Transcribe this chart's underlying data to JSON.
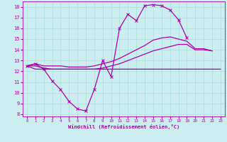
{
  "xlabel": "Windchill (Refroidissement éolien,°C)",
  "background_color": "#cceef0",
  "grid_color": "#aadddd",
  "line_color": "#aa00aa",
  "xlim": [
    -0.5,
    23.5
  ],
  "ylim": [
    7.8,
    18.5
  ],
  "yticks": [
    8,
    9,
    10,
    11,
    12,
    13,
    14,
    15,
    16,
    17,
    18
  ],
  "xticks": [
    0,
    1,
    2,
    3,
    4,
    5,
    6,
    7,
    8,
    9,
    10,
    11,
    12,
    13,
    14,
    15,
    16,
    17,
    18,
    19,
    20,
    21,
    22,
    23
  ],
  "curve_zigzag": {
    "x": [
      0,
      1,
      2,
      3,
      4,
      5,
      6,
      7,
      8,
      9,
      10,
      11,
      12,
      13,
      14,
      15,
      16,
      17,
      18,
      19
    ],
    "y": [
      12.5,
      12.7,
      12.2,
      11.1,
      10.3,
      9.2,
      8.5,
      8.3,
      10.3,
      13.0,
      11.5,
      16.0,
      17.3,
      16.7,
      18.1,
      18.2,
      18.1,
      17.7,
      16.8,
      15.1
    ]
  },
  "curve_upper": {
    "x": [
      0,
      1,
      2,
      3,
      4,
      5,
      6,
      7,
      8,
      9,
      10,
      11,
      12,
      13,
      14,
      15,
      16,
      17,
      18,
      19,
      20,
      21,
      22
    ],
    "y": [
      12.5,
      12.7,
      12.5,
      12.5,
      12.5,
      12.4,
      12.4,
      12.4,
      12.5,
      12.7,
      12.9,
      13.2,
      13.6,
      14.0,
      14.4,
      14.9,
      15.1,
      15.2,
      15.0,
      14.8,
      14.1,
      14.1,
      13.9
    ]
  },
  "curve_mid": {
    "x": [
      0,
      1,
      2,
      3,
      4,
      5,
      6,
      7,
      8,
      9,
      10,
      11,
      12,
      13,
      14,
      15,
      16,
      17,
      18,
      19,
      20,
      21,
      22
    ],
    "y": [
      12.5,
      12.5,
      12.3,
      12.2,
      12.2,
      12.2,
      12.2,
      12.2,
      12.2,
      12.3,
      12.5,
      12.7,
      13.0,
      13.3,
      13.6,
      13.9,
      14.1,
      14.3,
      14.5,
      14.5,
      14.0,
      14.0,
      13.9
    ]
  },
  "curve_lower": {
    "x": [
      0,
      1,
      2,
      3,
      4,
      5,
      6,
      7,
      8,
      9,
      10,
      11,
      12,
      13,
      14,
      15,
      16,
      17,
      18,
      19,
      20,
      21,
      22,
      23
    ],
    "y": [
      12.5,
      12.2,
      12.2,
      12.2,
      12.2,
      12.2,
      12.2,
      12.2,
      12.2,
      12.2,
      12.2,
      12.2,
      12.2,
      12.2,
      12.2,
      12.2,
      12.2,
      12.2,
      12.2,
      12.2,
      12.2,
      12.2,
      12.2,
      12.2
    ]
  }
}
